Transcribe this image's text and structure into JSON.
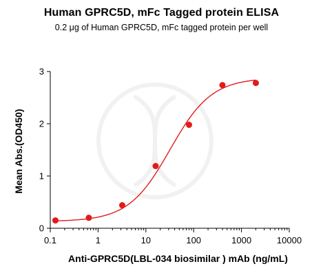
{
  "chart_data": {
    "type": "scatter",
    "title": "Human GPRC5D, mFc Tagged protein ELISA",
    "subtitle": "0.2 μg of Human GPRC5D, mFc tagged protein per well",
    "xlabel": "Anti-GPRC5D(LBL-034 biosimilar ) mAb (ng/mL)",
    "ylabel": "Mean Abs.(OD450)",
    "x_scale": "log",
    "xlim": [
      0.1,
      10000
    ],
    "ylim": [
      0,
      3
    ],
    "x_ticks": [
      0.1,
      1,
      10,
      100,
      1000,
      10000
    ],
    "x_tick_labels": [
      "0.1",
      "1",
      "10",
      "100",
      "1000",
      "10000"
    ],
    "y_ticks": [
      0,
      1,
      2,
      3
    ],
    "y_tick_labels": [
      "0",
      "1",
      "2",
      "3"
    ],
    "grid": false,
    "legend": "none",
    "series": [
      {
        "x": [
          0.128,
          0.64,
          3.2,
          16,
          80,
          400,
          2000
        ],
        "y": [
          0.15,
          0.2,
          0.44,
          1.19,
          1.98,
          2.74,
          2.78
        ],
        "color": "#e31a1c",
        "fit_curve": {
          "model": "4PL",
          "bottom": 0.13,
          "top": 2.88,
          "ec50": 32,
          "hill": 1.0
        }
      }
    ]
  }
}
